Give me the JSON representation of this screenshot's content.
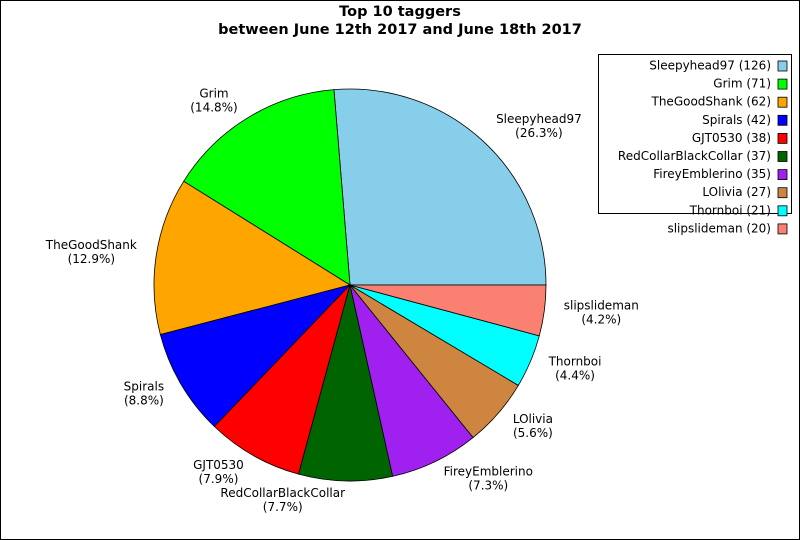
{
  "chart_data": {
    "type": "pie",
    "title": "Top 10 taggers",
    "subtitle": "between June 12th 2017 and June 18th 2017",
    "categories": [
      "Sleepyhead97",
      "Grim",
      "TheGoodShank",
      "Spirals",
      "GJT0530",
      "RedCollarBlackCollar",
      "FireyEmblerino",
      "LOlivia",
      "Thornboi",
      "slipslideman"
    ],
    "values": [
      126,
      71,
      62,
      42,
      38,
      37,
      35,
      27,
      21,
      20
    ],
    "value_labels": [
      "(26.3%)",
      "(14.8%)",
      "(12.9%)",
      "(8.8%)",
      "(7.9%)",
      "(7.7%)",
      "(7.3%)",
      "(5.6%)",
      "(4.4%)",
      "(4.2%)"
    ],
    "legend_labels": [
      "Sleepyhead97 (126)",
      "Grim (71)",
      "TheGoodShank (62)",
      "Spirals (42)",
      "GJT0530 (38)",
      "RedCollarBlackCollar (37)",
      "FireyEmblerino (35)",
      "LOlivia (27)",
      "Thornboi (21)",
      "slipslideman (20)"
    ],
    "colors": [
      "#87ceeb",
      "#00ff00",
      "#ffa500",
      "#0000ff",
      "#ff0000",
      "#006400",
      "#a020f0",
      "#cd853f",
      "#00ffff",
      "#fa8072"
    ],
    "legend": "upper right"
  }
}
